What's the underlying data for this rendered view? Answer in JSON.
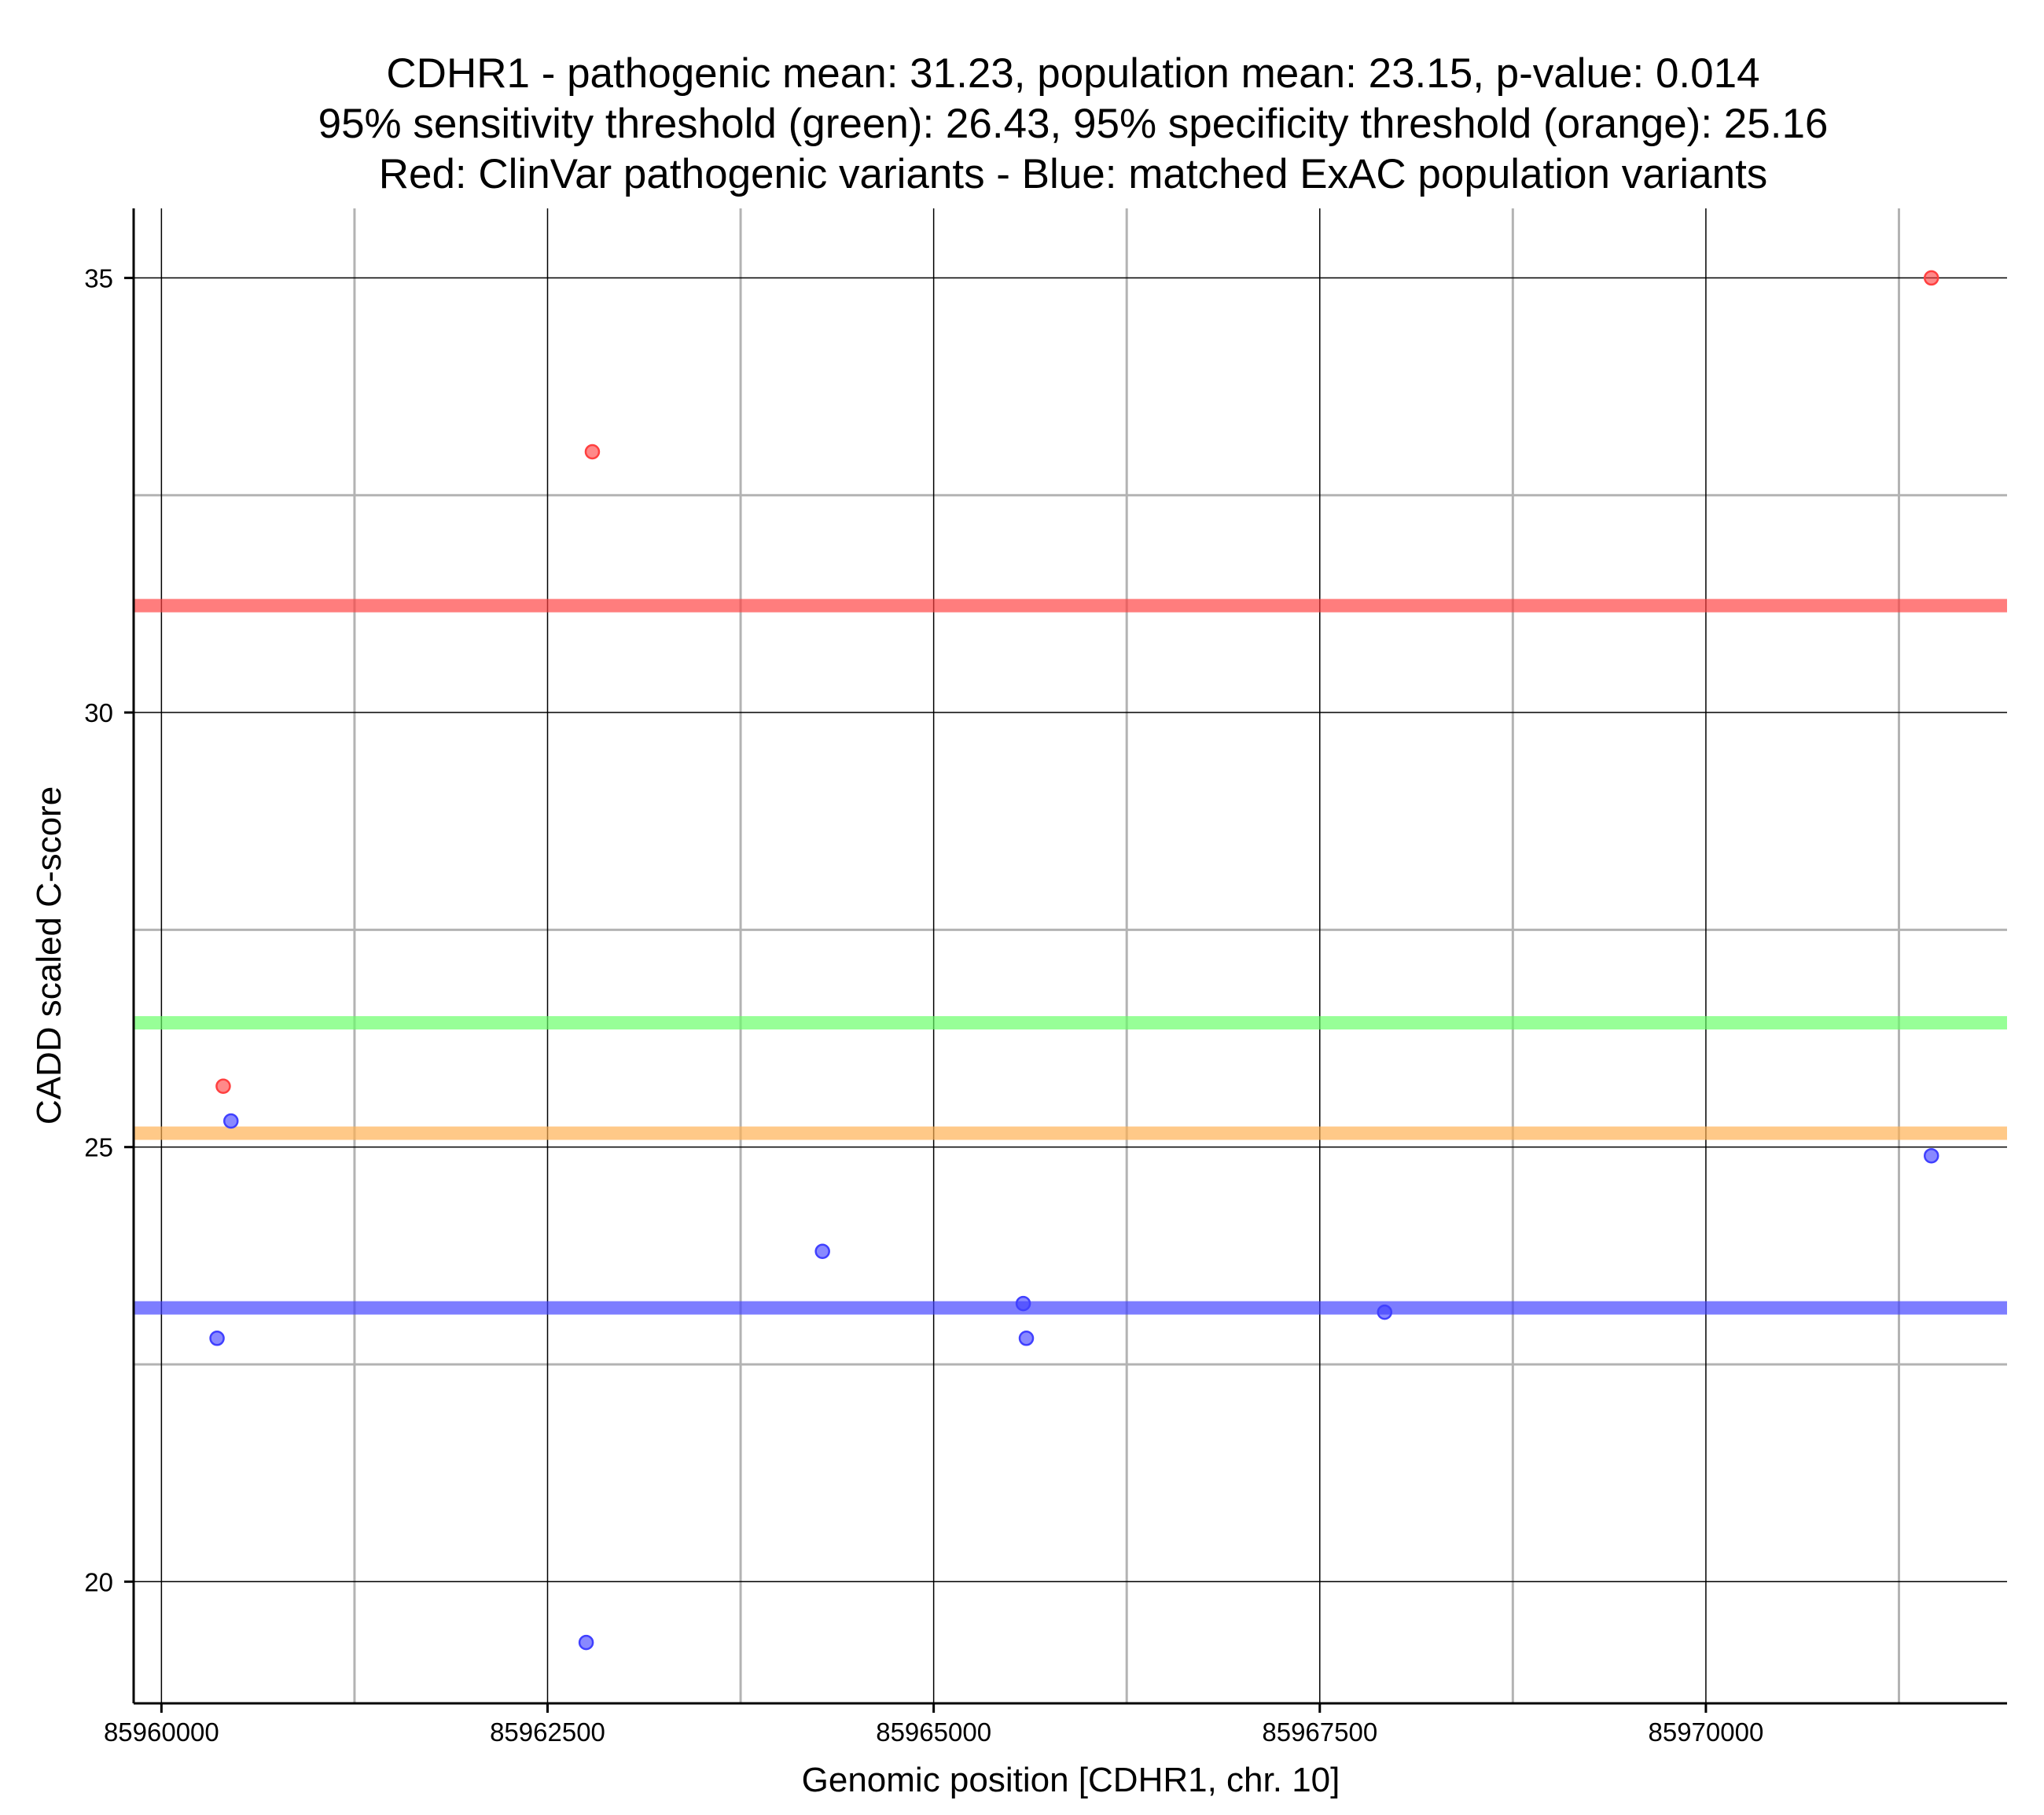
{
  "chart_data": {
    "type": "scatter",
    "title_lines": [
      "CDHR1 - pathogenic mean: 31.23, population mean: 23.15, p-value: 0.014",
      "95% sensitivity threshold (green): 26.43, 95% specificity threshold (orange): 25.16",
      "Red: ClinVar pathogenic variants - Blue: matched ExAC population variants"
    ],
    "xlabel": "Genomic position [CDHR1, chr. 10]",
    "ylabel": "CADD scaled C-score",
    "xlim": [
      85959820,
      85971950
    ],
    "ylim": [
      18.6,
      35.8
    ],
    "x_ticks": [
      85960000,
      85962500,
      85965000,
      85967500,
      85970000
    ],
    "x_tick_labels": [
      "85960000",
      "85962500",
      "85965000",
      "85967500",
      "85970000"
    ],
    "y_ticks": [
      20,
      25,
      30,
      35
    ],
    "y_tick_labels": [
      "20",
      "25",
      "30",
      "35"
    ],
    "x_minor_grid": [
      85961250,
      85963750,
      85966250,
      85968750,
      85971250
    ],
    "y_minor_grid": [
      22.5,
      27.5,
      32.5
    ],
    "grid": true,
    "colors": {
      "pathogenic": "#ff4040",
      "population": "#4040ff",
      "sensitivity": "#66ff66",
      "specificity": "#ffb050"
    },
    "series": [
      {
        "key": "pathogenic",
        "points": [
          {
            "x": 85960400,
            "y": 25.7
          },
          {
            "x": 85962790,
            "y": 33.0
          },
          {
            "x": 85971460,
            "y": 35.0
          }
        ]
      },
      {
        "key": "population",
        "points": [
          {
            "x": 85960360,
            "y": 22.8
          },
          {
            "x": 85960450,
            "y": 25.3
          },
          {
            "x": 85962750,
            "y": 19.3
          },
          {
            "x": 85964280,
            "y": 23.8
          },
          {
            "x": 85965580,
            "y": 23.2
          },
          {
            "x": 85965600,
            "y": 22.8
          },
          {
            "x": 85967920,
            "y": 23.1
          },
          {
            "x": 85971460,
            "y": 24.9
          }
        ]
      }
    ],
    "reference_lines": [
      {
        "key": "pathogenic",
        "y": 31.23
      },
      {
        "key": "sensitivity",
        "y": 26.43
      },
      {
        "key": "specificity",
        "y": 25.16
      },
      {
        "key": "population",
        "y": 23.15
      }
    ]
  }
}
